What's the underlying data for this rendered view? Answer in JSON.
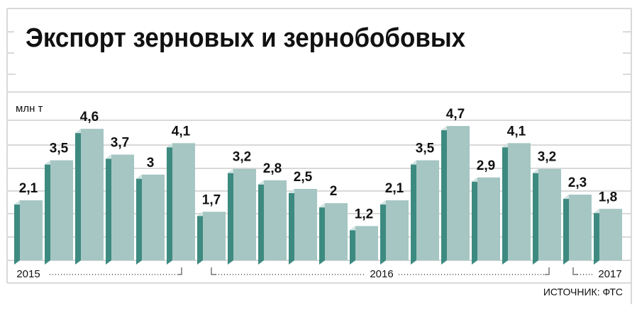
{
  "chart_data": {
    "type": "bar",
    "title": "Экспорт зерновых и зернобобовых",
    "unit_label": "млн т",
    "source": "ИСТОЧНИК: ФТС",
    "periods": [
      "2015",
      "2016",
      "2017"
    ],
    "categories": [
      null,
      null,
      null,
      null,
      null,
      null,
      null,
      null,
      null,
      null,
      null,
      null,
      null,
      null,
      null,
      null,
      null,
      null,
      null,
      null
    ],
    "values": [
      2.1,
      3.5,
      4.6,
      3.7,
      3,
      4.1,
      1.7,
      3.2,
      2.8,
      2.5,
      2,
      1.2,
      2.1,
      3.5,
      4.7,
      2.9,
      4.1,
      3.2,
      2.3,
      1.8
    ],
    "value_labels": [
      "2,1",
      "3,5",
      "4,6",
      "3,7",
      "3",
      "4,1",
      "1,7",
      "3,2",
      "2,8",
      "2,5",
      "2",
      "1,2",
      "2,1",
      "3,5",
      "4,7",
      "2,9",
      "4,1",
      "3,2",
      "2,3",
      "1,8"
    ],
    "color": "#a5c6c3",
    "ylim": [
      0,
      5
    ]
  }
}
